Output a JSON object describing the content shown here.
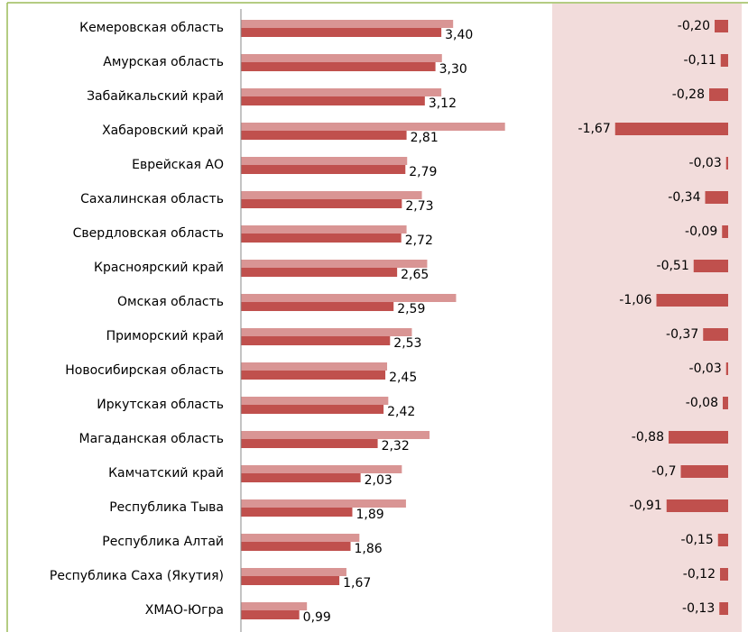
{
  "chart_data": [
    {
      "type": "bar",
      "orientation": "horizontal",
      "categories": [
        "Кемеровская область",
        "Амурская область",
        "Забайкальский край",
        "Хабаровский край",
        "Еврейская АО",
        "Сахалинская область",
        "Свердловская область",
        "Красноярский край",
        "Омская область",
        "Приморский край",
        "Новосибирская область",
        "Иркутская область",
        "Магаданская область",
        "Камчатский край",
        "Республика Тыва",
        "Республика Алтай",
        "Республика Саха (Якутия)",
        "ХМАО-Югра"
      ],
      "series": [
        {
          "color": "#d99594",
          "values": [
            3.6,
            3.41,
            3.4,
            4.48,
            2.82,
            3.07,
            2.81,
            3.16,
            3.65,
            2.9,
            2.48,
            2.5,
            3.2,
            2.73,
            2.8,
            2.01,
            1.79,
            1.12
          ]
        },
        {
          "color": "#c0504d",
          "values": [
            3.4,
            3.3,
            3.12,
            2.81,
            2.79,
            2.73,
            2.72,
            2.65,
            2.59,
            2.53,
            2.45,
            2.42,
            2.32,
            2.03,
            1.89,
            1.86,
            1.67,
            0.99
          ],
          "value_labels": [
            "3,40",
            "3,30",
            "3,12",
            "2,81",
            "2,79",
            "2,73",
            "2,72",
            "2,65",
            "2,59",
            "2,53",
            "2,45",
            "2,42",
            "2,32",
            "2,03",
            "1,89",
            "1,86",
            "1,67",
            "0,99"
          ]
        }
      ],
      "xlim": [
        0,
        5.25
      ]
    },
    {
      "type": "bar",
      "orientation": "horizontal",
      "color": "#c0504d",
      "background": "#f2dcdb",
      "values": [
        -0.2,
        -0.11,
        -0.28,
        -1.67,
        -0.03,
        -0.34,
        -0.09,
        -0.51,
        -1.06,
        -0.37,
        -0.03,
        -0.08,
        -0.88,
        -0.7,
        -0.91,
        -0.15,
        -0.12,
        -0.13
      ],
      "value_labels": [
        "-0,20",
        "-0,11",
        "-0,28",
        "-1,67",
        "-0,03",
        "-0,34",
        "-0,09",
        "-0,51",
        "-1,06",
        "-0,37",
        "-0,03",
        "-0,08",
        "-0,88",
        "-0,7",
        "-0,91",
        "-0,15",
        "-0,12",
        "-0,13"
      ],
      "xlim": [
        -2.6,
        0.2
      ]
    }
  ]
}
